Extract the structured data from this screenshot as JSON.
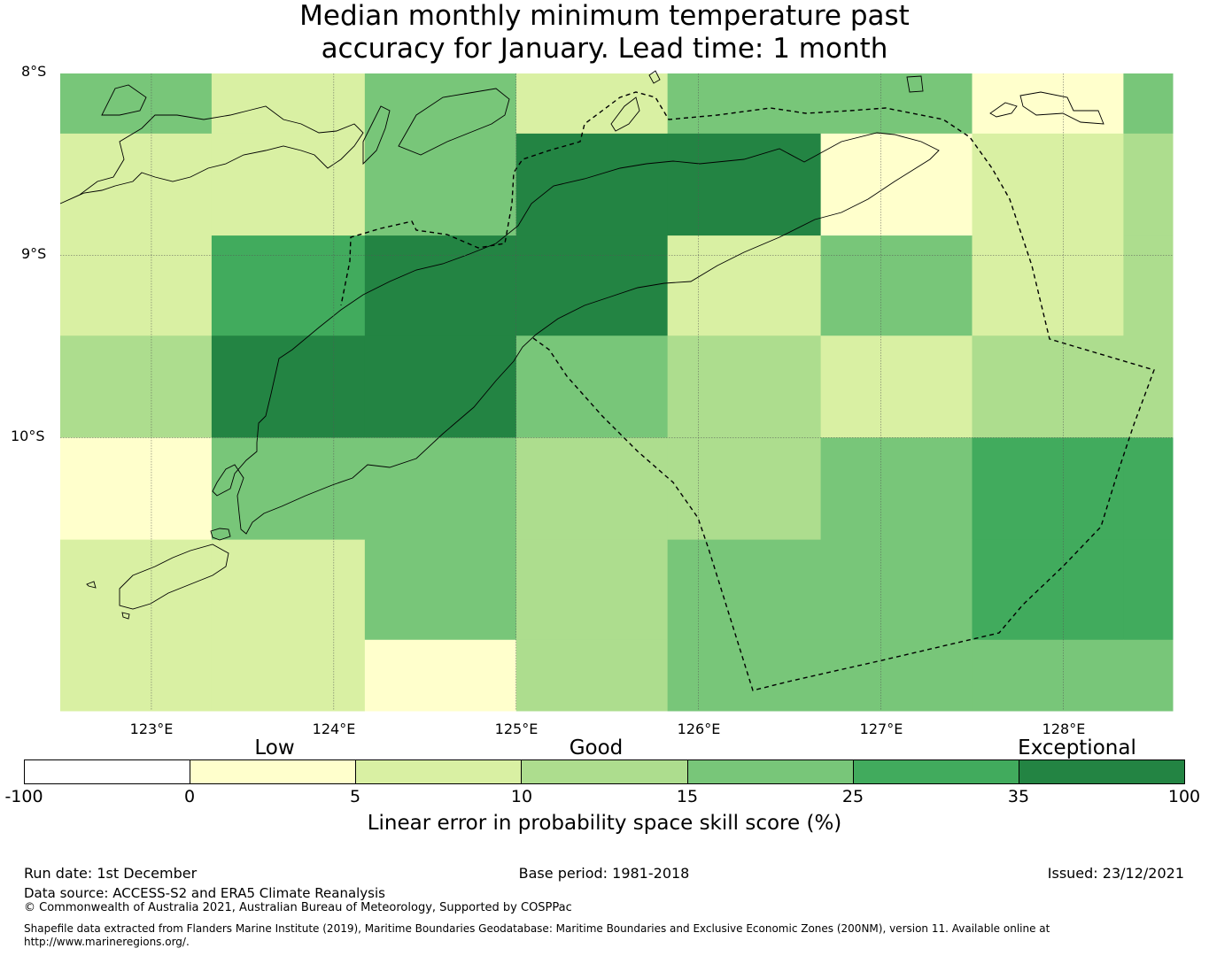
{
  "title": {
    "line1": "Median monthly minimum temperature past",
    "line2": "accuracy for January. Lead time: 1 month"
  },
  "map": {
    "lat_labels": [
      "8°S",
      "9°S",
      "10°S"
    ],
    "lon_labels": [
      "123°E",
      "124°E",
      "125°E",
      "126°E",
      "127°E",
      "128°E"
    ],
    "extent": {
      "lon_min": 122.5,
      "lon_max": 128.6,
      "lat_min": -11.5,
      "lat_max": -8.0
    },
    "cell_size_deg": 0.833,
    "grid_lon_edges": [
      122.5,
      123.33,
      124.17,
      125.0,
      125.83,
      126.67,
      127.5,
      128.33,
      128.6
    ],
    "grid_lat_edges": [
      -8.0,
      -8.33,
      -8.89,
      -9.44,
      -10.0,
      -10.56,
      -11.11,
      -11.5
    ],
    "grid_classes": [
      [
        4,
        2,
        4,
        2,
        4,
        4,
        1,
        4
      ],
      [
        2,
        2,
        4,
        6,
        6,
        1,
        2,
        3
      ],
      [
        2,
        5,
        6,
        6,
        2,
        4,
        2,
        3
      ],
      [
        3,
        6,
        6,
        4,
        3,
        2,
        3,
        3
      ],
      [
        1,
        4,
        4,
        3,
        3,
        4,
        5,
        5
      ],
      [
        2,
        2,
        4,
        3,
        4,
        4,
        5,
        5
      ],
      [
        2,
        2,
        1,
        3,
        4,
        4,
        4,
        4
      ]
    ],
    "palette": [
      "#ffffff",
      "#ffffcc",
      "#d9f0a3",
      "#addd8e",
      "#78c679",
      "#41ab5d",
      "#238443"
    ]
  },
  "colorbar": {
    "categories": [
      "Low",
      "Good",
      "Exceptional"
    ],
    "ticks": [
      "-100",
      "0",
      "5",
      "10",
      "15",
      "25",
      "35",
      "100"
    ],
    "colors": [
      "#ffffff",
      "#ffffcc",
      "#d9f0a3",
      "#addd8e",
      "#78c679",
      "#41ab5d",
      "#238443"
    ],
    "label": "Linear error in probability space skill score (%)"
  },
  "footer": {
    "run_date": "Run date: 1st December",
    "base_period": "Base period: 1981-2018",
    "issued": "Issued: 23/12/2021",
    "data_source": "Data source: ACCESS-S2 and ERA5 Climate Reanalysis",
    "copyright": "© Commonwealth of Australia 2021, Australian Bureau of Meteorology, Supported by COSPPac",
    "shapefile_line1": "Shapefile data extracted from Flanders Marine Institute (2019), Maritime Boundaries Geodatabase: Maritime Boundaries and Exclusive Economic Zones (200NM), version 11. Available online at",
    "shapefile_line2": "http://www.marineregions.org/."
  }
}
